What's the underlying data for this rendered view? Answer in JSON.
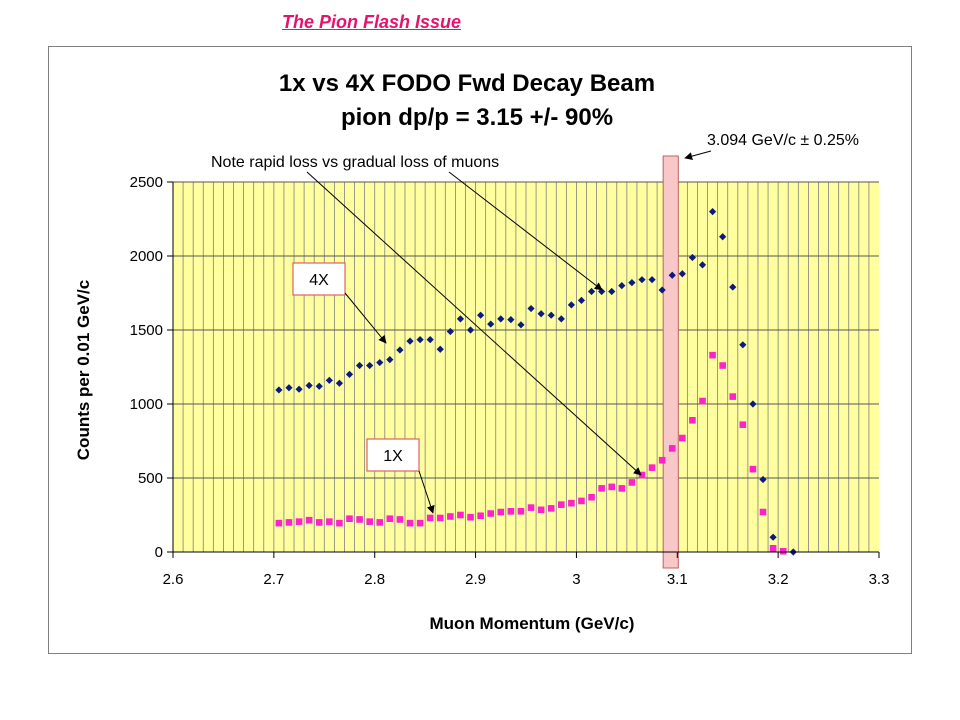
{
  "slide": {
    "title": "The Pion Flash Issue"
  },
  "colors": {
    "plot_bg": "#ffffa0",
    "grid": "#808080",
    "band_fill": "#f8c8c8",
    "band_stroke": "#c06060",
    "series_4x": "#0a1a80",
    "series_1x": "#ff22cc",
    "title_pink": "#e8116b"
  },
  "chart_data": {
    "type": "scatter",
    "title_lines": [
      "1x vs 4X FODO Fwd Decay Beam",
      "pion dp/p = 3.15 +/- 90%"
    ],
    "xlabel": "Muon Momentum (GeV/c)",
    "ylabel": "Counts per 0.01 GeV/c",
    "xlim": [
      2.6,
      3.3
    ],
    "ylim": [
      0,
      2500
    ],
    "x_ticks": [
      "2.6",
      "2.7",
      "2.8",
      "2.9",
      "3",
      "3.1",
      "3.2",
      "3.3"
    ],
    "y_ticks": [
      "0",
      "500",
      "1000",
      "1500",
      "2000",
      "2500"
    ],
    "x_minor_step": 0.01,
    "grid": true,
    "band": {
      "center": 3.094,
      "x_range": [
        3.086,
        3.101
      ],
      "label": "3.094 GeV/c ± 0.25%"
    },
    "annotations": {
      "note": "Note rapid loss vs gradual loss of muons",
      "label_4x": "4X",
      "label_1x": "1X"
    },
    "series": [
      {
        "name": "4X",
        "marker": "diamond",
        "color_key": "series_4x",
        "x": [
          2.705,
          2.715,
          2.725,
          2.735,
          2.745,
          2.755,
          2.765,
          2.775,
          2.785,
          2.795,
          2.805,
          2.815,
          2.825,
          2.835,
          2.845,
          2.855,
          2.865,
          2.875,
          2.885,
          2.895,
          2.905,
          2.915,
          2.925,
          2.935,
          2.945,
          2.955,
          2.965,
          2.975,
          2.985,
          2.995,
          3.005,
          3.015,
          3.025,
          3.035,
          3.045,
          3.055,
          3.065,
          3.075,
          3.085,
          3.095,
          3.105,
          3.115,
          3.125,
          3.135,
          3.145,
          3.155,
          3.165,
          3.175,
          3.185,
          3.195,
          3.215
        ],
        "y": [
          1095,
          1110,
          1100,
          1125,
          1120,
          1160,
          1140,
          1200,
          1260,
          1260,
          1280,
          1300,
          1365,
          1425,
          1435,
          1435,
          1370,
          1490,
          1575,
          1500,
          1600,
          1540,
          1575,
          1570,
          1535,
          1645,
          1610,
          1600,
          1575,
          1670,
          1700,
          1760,
          1760,
          1760,
          1800,
          1820,
          1840,
          1840,
          1770,
          1870,
          1880,
          1990,
          1940,
          2300,
          2130,
          1790,
          1400,
          1000,
          490,
          100,
          0
        ]
      },
      {
        "name": "1X",
        "marker": "square",
        "color_key": "series_1x",
        "x": [
          2.705,
          2.715,
          2.725,
          2.735,
          2.745,
          2.755,
          2.765,
          2.775,
          2.785,
          2.795,
          2.805,
          2.815,
          2.825,
          2.835,
          2.845,
          2.855,
          2.865,
          2.875,
          2.885,
          2.895,
          2.905,
          2.915,
          2.925,
          2.935,
          2.945,
          2.955,
          2.965,
          2.975,
          2.985,
          2.995,
          3.005,
          3.015,
          3.025,
          3.035,
          3.045,
          3.055,
          3.065,
          3.075,
          3.085,
          3.095,
          3.105,
          3.115,
          3.125,
          3.135,
          3.145,
          3.155,
          3.165,
          3.175,
          3.185,
          3.195,
          3.205
        ],
        "y": [
          195,
          200,
          205,
          215,
          200,
          205,
          195,
          225,
          220,
          205,
          200,
          225,
          220,
          195,
          195,
          230,
          230,
          240,
          250,
          235,
          245,
          260,
          270,
          275,
          275,
          300,
          285,
          295,
          320,
          330,
          345,
          370,
          430,
          440,
          430,
          470,
          520,
          570,
          620,
          700,
          770,
          890,
          1020,
          1330,
          1260,
          1050,
          860,
          560,
          270,
          25,
          5
        ]
      }
    ]
  }
}
